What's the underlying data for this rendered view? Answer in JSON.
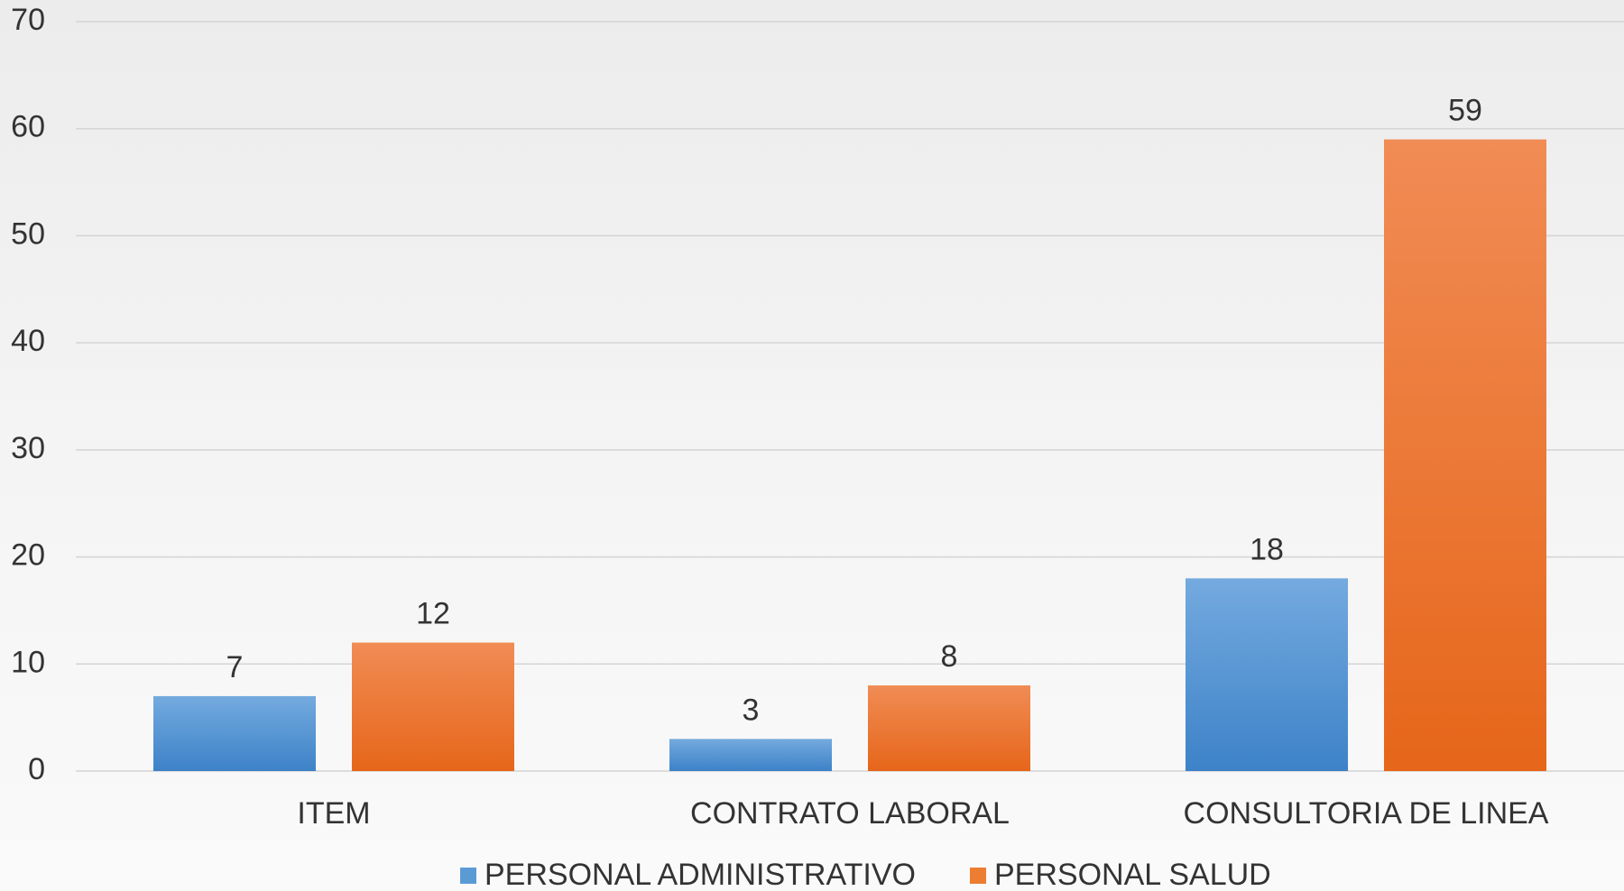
{
  "chart_data": {
    "type": "bar",
    "categories": [
      "ITEM",
      "CONTRATO LABORAL",
      "CONSULTORIA DE LINEA"
    ],
    "series": [
      {
        "name": "PERSONAL ADMINISTRATIVO",
        "color": "#5b9bd5",
        "values": [
          7,
          3,
          18
        ]
      },
      {
        "name": "PERSONAL SALUD",
        "color": "#ed7d31",
        "values": [
          12,
          8,
          59
        ]
      }
    ],
    "ylim": [
      0,
      70
    ],
    "yticks": [
      0,
      10,
      20,
      30,
      40,
      50,
      60,
      70
    ],
    "grid": true,
    "legend": "bottom"
  }
}
